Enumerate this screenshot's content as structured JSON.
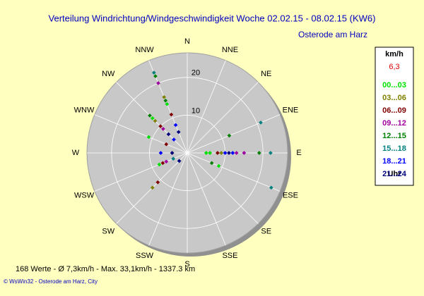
{
  "chart_data": {
    "type": "polar-scatter",
    "title": "Verteilung Windrichtung/Windgeschwindigkeit  Woche 02.02.15 - 08.02.15 (KW6)",
    "subtitle": "Osterode am Harz",
    "directions": [
      "N",
      "NNE",
      "NE",
      "ENE",
      "E",
      "ESE",
      "SE",
      "SSE",
      "S",
      "SSW",
      "SW",
      "WSW",
      "W",
      "WNW",
      "NW",
      "NNW"
    ],
    "rlim": [
      0,
      26.5
    ],
    "rticks": [
      10,
      20
    ],
    "legend_header": "km/h",
    "legend_note": "6,3",
    "legend_footer": "Uhr",
    "series": [
      {
        "name": "00...03",
        "color": "#00e000",
        "theta": [
          337.5,
          315,
          90,
          90,
          247.5,
          112.5,
          292.5
        ],
        "values": [
          14,
          13,
          5,
          6,
          8,
          9,
          11
        ]
      },
      {
        "name": "03...06",
        "color": "#808000",
        "theta": [
          337.5,
          315,
          90,
          225,
          270
        ],
        "values": [
          16,
          12,
          9,
          13,
          4
        ]
      },
      {
        "name": "06...09",
        "color": "#800000",
        "theta": [
          337.5,
          315,
          247.5,
          90,
          225,
          292.5
        ],
        "values": [
          11,
          10,
          7,
          8,
          11,
          6
        ]
      },
      {
        "name": "09...12",
        "color": "#a000a0",
        "theta": [
          337.5,
          90,
          90,
          315,
          247.5
        ],
        "values": [
          20,
          13,
          15,
          9,
          6
        ]
      },
      {
        "name": "12...15",
        "color": "#008000",
        "theta": [
          337.5,
          67.5,
          90,
          112.5,
          315,
          337.5
        ],
        "values": [
          15,
          12,
          19,
          7,
          14,
          22
        ]
      },
      {
        "name": "15...18",
        "color": "#008080",
        "theta": [
          337.5,
          67.5,
          90,
          112.5,
          247.5
        ],
        "values": [
          23,
          21,
          22,
          24,
          4
        ]
      },
      {
        "name": "18...21",
        "color": "#0000ff",
        "theta": [
          90,
          90,
          337.5,
          315,
          270
        ],
        "values": [
          10,
          12,
          8,
          5,
          7
        ]
      },
      {
        "name": "21...24",
        "color": "#000080",
        "theta": [
          90,
          337.5,
          315,
          270,
          225
        ],
        "values": [
          11,
          6,
          7,
          4,
          3
        ]
      }
    ],
    "stats": "168 Werte   -   Ø 7,3km/h  -  Max. 33,1km/h  -   1337.3 km",
    "copyright": "© WsWin32  -  Osterode am Harz, City"
  }
}
